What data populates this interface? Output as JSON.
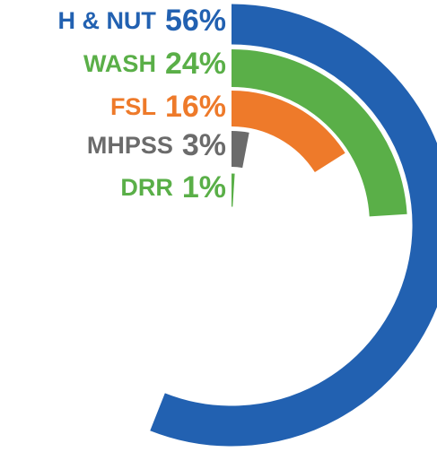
{
  "chart_data": {
    "type": "radial_bar",
    "categories": [
      "H & NUT",
      "WASH",
      "FSL",
      "MHPSS",
      "DRR"
    ],
    "values": [
      56,
      24,
      16,
      3,
      1
    ],
    "value_labels": [
      "56%",
      "24%",
      "16%",
      "3%",
      "1%"
    ],
    "colors": [
      "#2261b1",
      "#5aaf48",
      "#ee7a2a",
      "#6b6b6b",
      "#5aaf48"
    ]
  }
}
